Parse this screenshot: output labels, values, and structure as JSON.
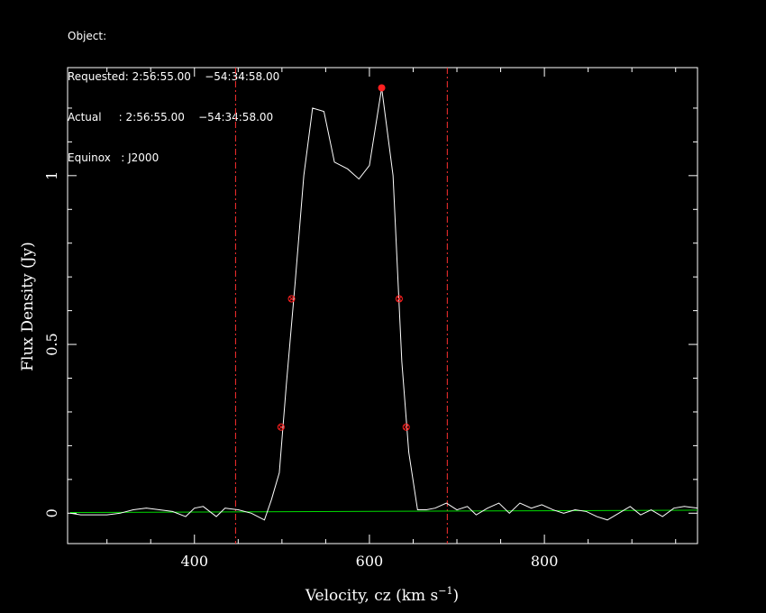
{
  "header": {
    "lines": [
      "Object:",
      "Requested: 2:56:55.00    −54:34:58.00",
      "Actual     : 2:56:55.00    −54:34:58.00",
      "Equinox   : J2000"
    ]
  },
  "chart_data": {
    "type": "line",
    "title": "",
    "xlabel": "Velocity, cz (km s",
    "xlabel_sup": "−1",
    "xlabel_close": ")",
    "ylabel": "Flux Density (Jy)",
    "xlim": [
      255,
      975
    ],
    "ylim": [
      -0.09,
      1.32
    ],
    "xticks": [
      400,
      600,
      800
    ],
    "xtick_labels": [
      "400",
      "600",
      "800"
    ],
    "yticks": [
      0,
      0.5,
      1
    ],
    "ytick_labels": [
      "0",
      "0.5",
      "1"
    ],
    "grid": false,
    "colors": {
      "spectrum": "#ffffff",
      "baseline": "#00dd00",
      "markers": "#ff2020",
      "window": "#ff3030"
    },
    "spectrum": {
      "x": [
        258,
        270,
        285,
        300,
        315,
        330,
        345,
        360,
        375,
        390,
        400,
        410,
        425,
        435,
        450,
        465,
        480,
        488,
        497,
        505,
        515,
        525,
        535,
        548,
        560,
        575,
        588,
        600,
        614,
        627,
        637,
        645,
        655,
        665,
        675,
        688,
        700,
        712,
        722,
        735,
        748,
        760,
        772,
        785,
        797,
        810,
        822,
        835,
        848,
        860,
        872,
        885,
        898,
        910,
        922,
        935,
        948,
        960,
        975
      ],
      "y": [
        0.0,
        -0.005,
        -0.005,
        -0.005,
        0.0,
        0.01,
        0.015,
        0.01,
        0.005,
        -0.01,
        0.015,
        0.02,
        -0.01,
        0.015,
        0.01,
        0.0,
        -0.02,
        0.04,
        0.12,
        0.38,
        0.68,
        1.0,
        1.2,
        1.19,
        1.04,
        1.02,
        0.99,
        1.03,
        1.26,
        1.0,
        0.45,
        0.18,
        0.01,
        0.01,
        0.015,
        0.03,
        0.01,
        0.02,
        -0.005,
        0.015,
        0.03,
        0.0,
        0.03,
        0.015,
        0.025,
        0.01,
        0.0,
        0.01,
        0.005,
        -0.01,
        -0.02,
        0.0,
        0.02,
        -0.005,
        0.01,
        -0.01,
        0.015,
        0.02,
        0.015
      ]
    },
    "baseline": {
      "x": [
        258,
        975
      ],
      "y": [
        0.002,
        0.009
      ]
    },
    "window_lines": [
      447,
      689
    ],
    "peak_marker": {
      "x": 614,
      "y": 1.26
    },
    "width_markers": [
      {
        "x": 499,
        "y": 0.255
      },
      {
        "x": 511,
        "y": 0.635
      },
      {
        "x": 634,
        "y": 0.635
      },
      {
        "x": 642,
        "y": 0.255
      }
    ]
  }
}
